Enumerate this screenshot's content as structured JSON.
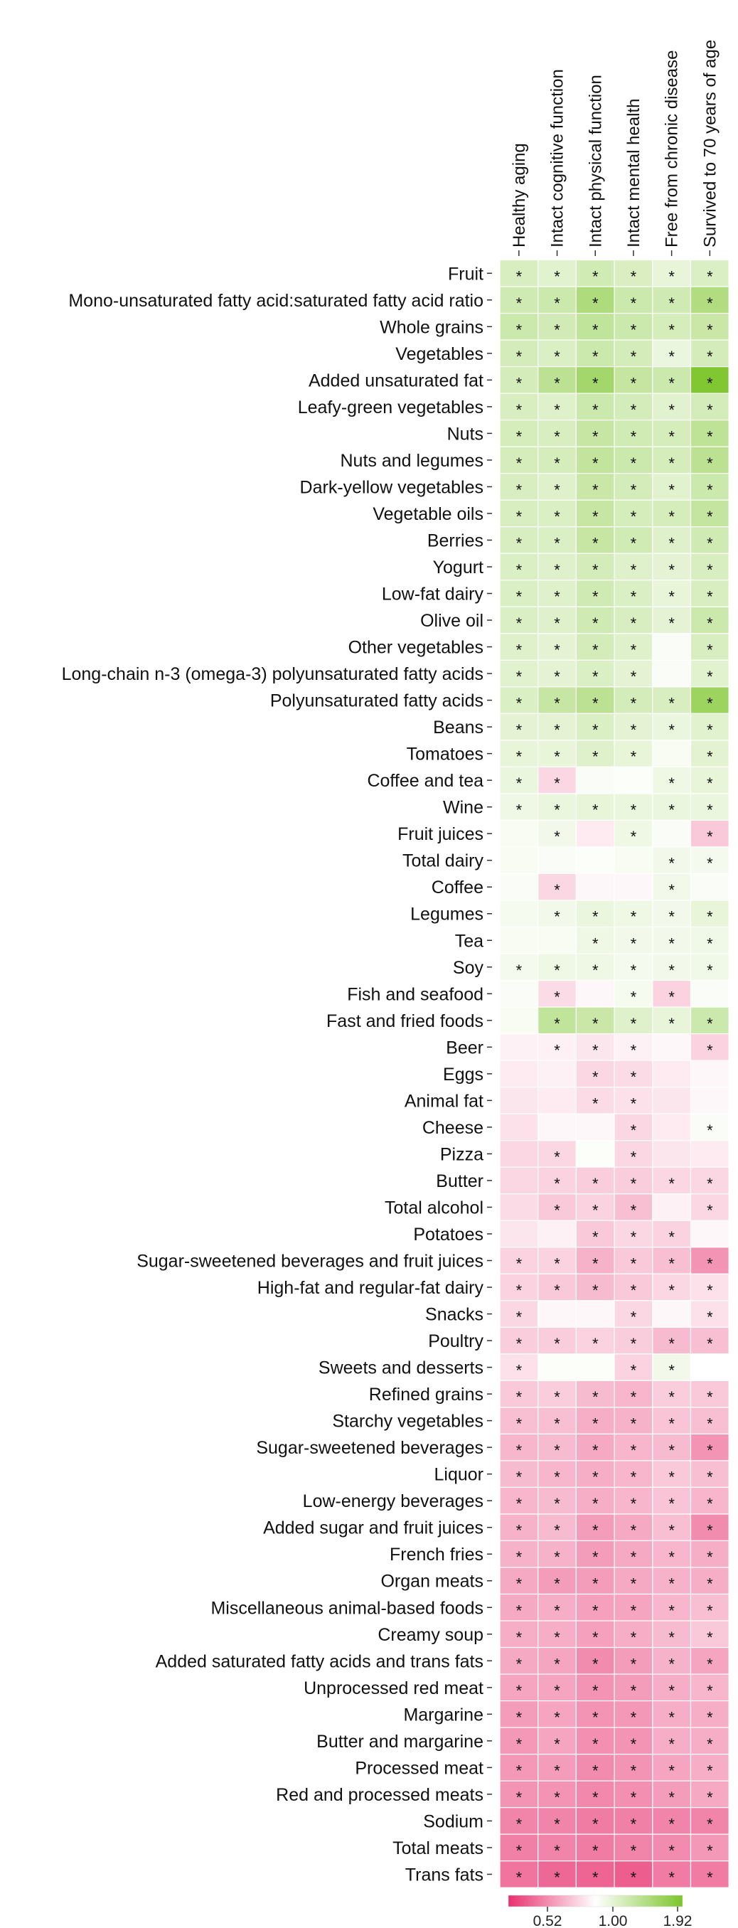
{
  "chart_data": {
    "type": "heatmap",
    "columns": [
      "Healthy aging",
      "Intact cognitive function",
      "Intact physical function",
      "Intact mental health",
      "Free from chronic disease",
      "Survived to 70 years of age"
    ],
    "rows": [
      {
        "label": "Fruit",
        "values": [
          1.22,
          1.16,
          1.27,
          1.21,
          1.12,
          1.2
        ],
        "sig": [
          1,
          1,
          1,
          1,
          1,
          1
        ]
      },
      {
        "label": "Mono-unsaturated fatty acid:saturated fatty acid ratio",
        "values": [
          1.28,
          1.3,
          1.52,
          1.3,
          1.28,
          1.5
        ],
        "sig": [
          1,
          1,
          1,
          1,
          1,
          1
        ]
      },
      {
        "label": "Whole grains",
        "values": [
          1.3,
          1.26,
          1.38,
          1.3,
          1.24,
          1.32
        ],
        "sig": [
          1,
          1,
          1,
          1,
          1,
          1
        ]
      },
      {
        "label": "Vegetables",
        "values": [
          1.25,
          1.2,
          1.3,
          1.25,
          1.1,
          1.25
        ],
        "sig": [
          1,
          1,
          1,
          1,
          1,
          1
        ]
      },
      {
        "label": "Added unsaturated fat",
        "values": [
          1.25,
          1.42,
          1.6,
          1.35,
          1.3,
          1.88
        ],
        "sig": [
          1,
          1,
          1,
          1,
          1,
          1
        ]
      },
      {
        "label": "Leafy-green vegetables",
        "values": [
          1.22,
          1.18,
          1.3,
          1.25,
          1.16,
          1.25
        ],
        "sig": [
          1,
          1,
          1,
          1,
          1,
          1
        ]
      },
      {
        "label": "Nuts",
        "values": [
          1.24,
          1.22,
          1.34,
          1.27,
          1.24,
          1.4
        ],
        "sig": [
          1,
          1,
          1,
          1,
          1,
          1
        ]
      },
      {
        "label": "Nuts and legumes",
        "values": [
          1.24,
          1.24,
          1.37,
          1.3,
          1.24,
          1.42
        ],
        "sig": [
          1,
          1,
          1,
          1,
          1,
          1
        ]
      },
      {
        "label": "Dark-yellow vegetables",
        "values": [
          1.22,
          1.18,
          1.32,
          1.25,
          1.16,
          1.3
        ],
        "sig": [
          1,
          1,
          1,
          1,
          1,
          1
        ]
      },
      {
        "label": "Vegetable oils",
        "values": [
          1.22,
          1.2,
          1.34,
          1.24,
          1.24,
          1.36
        ],
        "sig": [
          1,
          1,
          1,
          1,
          1,
          1
        ]
      },
      {
        "label": "Berries",
        "values": [
          1.22,
          1.2,
          1.34,
          1.27,
          1.18,
          1.28
        ],
        "sig": [
          1,
          1,
          1,
          1,
          1,
          1
        ]
      },
      {
        "label": "Yogurt",
        "values": [
          1.2,
          1.18,
          1.25,
          1.18,
          1.14,
          1.22
        ],
        "sig": [
          1,
          1,
          1,
          1,
          1,
          1
        ]
      },
      {
        "label": "Low-fat dairy",
        "values": [
          1.2,
          1.18,
          1.28,
          1.2,
          1.12,
          1.22
        ],
        "sig": [
          1,
          1,
          1,
          1,
          1,
          1
        ]
      },
      {
        "label": "Olive oil",
        "values": [
          1.2,
          1.18,
          1.28,
          1.22,
          1.14,
          1.3
        ],
        "sig": [
          1,
          1,
          1,
          1,
          1,
          1
        ]
      },
      {
        "label": "Other vegetables",
        "values": [
          1.18,
          1.14,
          1.25,
          1.18,
          1.02,
          1.22
        ],
        "sig": [
          1,
          1,
          1,
          1,
          0,
          1
        ]
      },
      {
        "label": "Long-chain n-3 (omega-3) polyunsaturated fatty acids",
        "values": [
          1.16,
          1.14,
          1.2,
          1.14,
          1.02,
          1.16
        ],
        "sig": [
          1,
          1,
          1,
          1,
          0,
          1
        ]
      },
      {
        "label": "Polyunsaturated fatty acids",
        "values": [
          1.2,
          1.34,
          1.42,
          1.25,
          1.22,
          1.65
        ],
        "sig": [
          1,
          1,
          1,
          1,
          1,
          1
        ]
      },
      {
        "label": "Beans",
        "values": [
          1.14,
          1.14,
          1.2,
          1.14,
          1.1,
          1.16
        ],
        "sig": [
          1,
          1,
          1,
          1,
          1,
          1
        ]
      },
      {
        "label": "Tomatoes",
        "values": [
          1.12,
          1.12,
          1.18,
          1.12,
          1.03,
          1.15
        ],
        "sig": [
          1,
          1,
          1,
          1,
          0,
          1
        ]
      },
      {
        "label": "Coffee and tea",
        "values": [
          1.1,
          0.93,
          1.02,
          1.01,
          1.08,
          1.12
        ],
        "sig": [
          1,
          1,
          0,
          0,
          1,
          1
        ]
      },
      {
        "label": "Wine",
        "values": [
          1.08,
          1.1,
          1.12,
          1.1,
          1.1,
          1.1
        ],
        "sig": [
          1,
          1,
          1,
          1,
          1,
          1
        ]
      },
      {
        "label": "Fruit juices",
        "values": [
          1.03,
          1.06,
          0.97,
          1.08,
          1.02,
          0.9
        ],
        "sig": [
          0,
          1,
          0,
          1,
          0,
          1
        ]
      },
      {
        "label": "Total dairy",
        "values": [
          1.03,
          1.02,
          1.01,
          1.03,
          1.06,
          1.05
        ],
        "sig": [
          0,
          0,
          0,
          0,
          1,
          1
        ]
      },
      {
        "label": "Coffee",
        "values": [
          1.02,
          0.93,
          0.99,
          0.99,
          1.06,
          1.02
        ],
        "sig": [
          0,
          1,
          0,
          0,
          1,
          0
        ]
      },
      {
        "label": "Legumes",
        "values": [
          1.04,
          1.06,
          1.1,
          1.08,
          1.06,
          1.12
        ],
        "sig": [
          0,
          1,
          1,
          1,
          1,
          1
        ]
      },
      {
        "label": "Tea",
        "values": [
          1.03,
          1.03,
          1.08,
          1.06,
          1.06,
          1.07
        ],
        "sig": [
          0,
          0,
          1,
          1,
          1,
          1
        ]
      },
      {
        "label": "Soy",
        "values": [
          1.05,
          1.08,
          1.08,
          1.05,
          1.06,
          1.07
        ],
        "sig": [
          1,
          1,
          1,
          1,
          1,
          1
        ]
      },
      {
        "label": "Fish and seafood",
        "values": [
          1.02,
          0.94,
          0.99,
          1.04,
          0.92,
          1.02
        ],
        "sig": [
          0,
          1,
          0,
          1,
          1,
          0
        ]
      },
      {
        "label": "Fast and fried foods",
        "values": [
          1.03,
          1.38,
          1.32,
          1.18,
          1.12,
          1.3
        ],
        "sig": [
          0,
          1,
          1,
          1,
          1,
          1
        ]
      },
      {
        "label": "Beer",
        "values": [
          0.98,
          0.98,
          0.96,
          0.98,
          0.99,
          0.92
        ],
        "sig": [
          0,
          1,
          1,
          1,
          0,
          1
        ]
      },
      {
        "label": "Eggs",
        "values": [
          0.97,
          0.98,
          0.93,
          0.94,
          0.97,
          0.99
        ],
        "sig": [
          0,
          0,
          1,
          1,
          0,
          0
        ]
      },
      {
        "label": "Animal fat",
        "values": [
          0.96,
          0.97,
          0.94,
          0.95,
          0.96,
          0.99
        ],
        "sig": [
          0,
          0,
          1,
          1,
          0,
          0
        ]
      },
      {
        "label": "Cheese",
        "values": [
          0.95,
          0.99,
          0.99,
          0.93,
          0.97,
          1.02
        ],
        "sig": [
          0,
          0,
          0,
          1,
          0,
          1
        ]
      },
      {
        "label": "Pizza",
        "values": [
          0.93,
          0.93,
          1.01,
          0.93,
          0.96,
          0.97
        ],
        "sig": [
          0,
          1,
          0,
          1,
          0,
          0
        ]
      },
      {
        "label": "Butter",
        "values": [
          0.93,
          0.92,
          0.91,
          0.91,
          0.93,
          0.93
        ],
        "sig": [
          0,
          1,
          1,
          1,
          1,
          1
        ]
      },
      {
        "label": "Total alcohol",
        "values": [
          0.94,
          0.9,
          0.92,
          0.88,
          0.98,
          0.93
        ],
        "sig": [
          0,
          1,
          1,
          1,
          0,
          1
        ]
      },
      {
        "label": "Potatoes",
        "values": [
          0.96,
          0.98,
          0.9,
          0.93,
          0.92,
          0.99
        ],
        "sig": [
          0,
          0,
          1,
          1,
          1,
          0
        ]
      },
      {
        "label": "Sugar-sweetened beverages and fruit juices",
        "values": [
          0.92,
          0.92,
          0.85,
          0.9,
          0.88,
          0.78
        ],
        "sig": [
          1,
          1,
          1,
          1,
          1,
          1
        ]
      },
      {
        "label": "High-fat and regular-fat dairy",
        "values": [
          0.92,
          0.9,
          0.87,
          0.9,
          0.93,
          0.95
        ],
        "sig": [
          1,
          1,
          1,
          1,
          1,
          1
        ]
      },
      {
        "label": "Snacks",
        "values": [
          0.93,
          0.99,
          0.99,
          0.93,
          0.99,
          0.95
        ],
        "sig": [
          1,
          0,
          0,
          1,
          0,
          1
        ]
      },
      {
        "label": "Poultry",
        "values": [
          0.91,
          0.91,
          0.92,
          0.91,
          0.87,
          0.88
        ],
        "sig": [
          1,
          1,
          1,
          1,
          1,
          1
        ]
      },
      {
        "label": "Sweets and desserts",
        "values": [
          0.95,
          1.01,
          1.01,
          0.92,
          1.06,
          1.0
        ],
        "sig": [
          1,
          0,
          0,
          1,
          1,
          0
        ]
      },
      {
        "label": "Refined grains",
        "values": [
          0.9,
          0.91,
          0.87,
          0.86,
          0.91,
          0.9
        ],
        "sig": [
          1,
          1,
          1,
          1,
          1,
          1
        ]
      },
      {
        "label": "Starchy vegetables",
        "values": [
          0.88,
          0.88,
          0.84,
          0.85,
          0.89,
          0.88
        ],
        "sig": [
          1,
          1,
          1,
          1,
          1,
          1
        ]
      },
      {
        "label": "Sugar-sweetened beverages",
        "values": [
          0.86,
          0.87,
          0.83,
          0.86,
          0.87,
          0.78
        ],
        "sig": [
          1,
          1,
          1,
          1,
          1,
          1
        ]
      },
      {
        "label": "Liquor",
        "values": [
          0.87,
          0.86,
          0.84,
          0.86,
          0.9,
          0.88
        ],
        "sig": [
          1,
          1,
          1,
          1,
          1,
          1
        ]
      },
      {
        "label": "Low-energy beverages",
        "values": [
          0.86,
          0.87,
          0.84,
          0.86,
          0.89,
          0.86
        ],
        "sig": [
          1,
          1,
          1,
          1,
          1,
          1
        ]
      },
      {
        "label": "Added sugar and fruit juices",
        "values": [
          0.85,
          0.87,
          0.8,
          0.83,
          0.88,
          0.76
        ],
        "sig": [
          1,
          1,
          1,
          1,
          1,
          1
        ]
      },
      {
        "label": "French fries",
        "values": [
          0.85,
          0.85,
          0.8,
          0.83,
          0.86,
          0.84
        ],
        "sig": [
          1,
          1,
          1,
          1,
          1,
          1
        ]
      },
      {
        "label": "Organ meats",
        "values": [
          0.83,
          0.8,
          0.8,
          0.83,
          0.85,
          0.84
        ],
        "sig": [
          1,
          1,
          1,
          1,
          1,
          1
        ]
      },
      {
        "label": "Miscellaneous animal-based foods",
        "values": [
          0.83,
          0.84,
          0.81,
          0.82,
          0.86,
          0.88
        ],
        "sig": [
          1,
          1,
          1,
          1,
          1,
          1
        ]
      },
      {
        "label": "Creamy soup",
        "values": [
          0.84,
          0.84,
          0.81,
          0.84,
          0.87,
          0.9
        ],
        "sig": [
          1,
          1,
          1,
          1,
          1,
          1
        ]
      },
      {
        "label": "Added saturated fatty acids and trans fats",
        "values": [
          0.83,
          0.82,
          0.76,
          0.8,
          0.85,
          0.82
        ],
        "sig": [
          1,
          1,
          1,
          1,
          1,
          1
        ]
      },
      {
        "label": "Unprocessed red meat",
        "values": [
          0.82,
          0.82,
          0.78,
          0.8,
          0.84,
          0.86
        ],
        "sig": [
          1,
          1,
          1,
          1,
          1,
          1
        ]
      },
      {
        "label": "Margarine",
        "values": [
          0.8,
          0.82,
          0.78,
          0.79,
          0.84,
          0.84
        ],
        "sig": [
          1,
          1,
          1,
          1,
          1,
          1
        ]
      },
      {
        "label": "Butter and margarine",
        "values": [
          0.79,
          0.82,
          0.77,
          0.78,
          0.84,
          0.84
        ],
        "sig": [
          1,
          1,
          1,
          1,
          1,
          1
        ]
      },
      {
        "label": "Processed meat",
        "values": [
          0.79,
          0.8,
          0.76,
          0.78,
          0.82,
          0.84
        ],
        "sig": [
          1,
          1,
          1,
          1,
          1,
          1
        ]
      },
      {
        "label": "Red and processed meats",
        "values": [
          0.78,
          0.78,
          0.75,
          0.77,
          0.8,
          0.83
        ],
        "sig": [
          1,
          1,
          1,
          1,
          1,
          1
        ]
      },
      {
        "label": "Sodium",
        "values": [
          0.74,
          0.74,
          0.72,
          0.73,
          0.74,
          0.74
        ],
        "sig": [
          1,
          1,
          1,
          1,
          1,
          1
        ]
      },
      {
        "label": "Total meats",
        "values": [
          0.73,
          0.74,
          0.72,
          0.74,
          0.76,
          0.79
        ],
        "sig": [
          1,
          1,
          1,
          1,
          1,
          1
        ]
      },
      {
        "label": "Trans fats",
        "values": [
          0.7,
          0.67,
          0.66,
          0.64,
          0.72,
          0.72
        ],
        "sig": [
          1,
          1,
          1,
          1,
          1,
          1
        ]
      }
    ],
    "significance_marker": "*",
    "colorbar": {
      "min": 0.52,
      "mid": 1.0,
      "max": 1.92,
      "tick_labels": [
        "0.52",
        "1.00",
        "1.92"
      ],
      "colors": {
        "low": "#e8306f",
        "mid": "#ffffff",
        "high": "#7cc52a"
      }
    }
  }
}
